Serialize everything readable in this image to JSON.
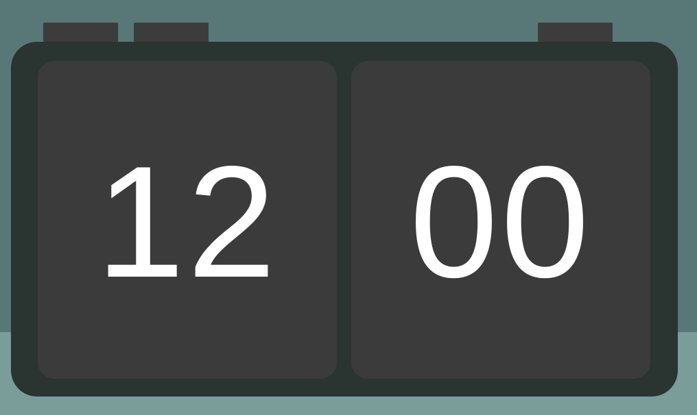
{
  "clock": {
    "hours": "12",
    "minutes": "00"
  },
  "colors": {
    "wall": "#587878",
    "table": "#7a9d9a",
    "body": "#2a3431",
    "panel": "#3b3b3b",
    "button": "#3c3c3c",
    "digits": "#ffffff"
  }
}
